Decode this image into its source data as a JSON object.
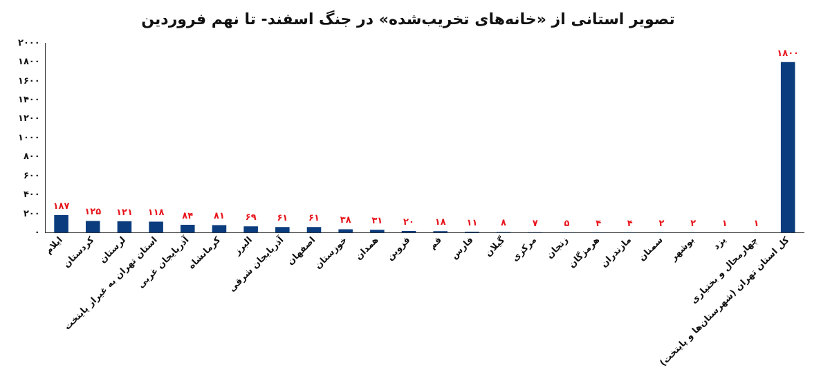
{
  "chart_data": {
    "type": "bar",
    "title": "تصویر استانی از «خانه‌های تخریب‌شده» در جنگ اسفند- تا نهم فروردین",
    "categories": [
      "ایلام",
      "کردستان",
      "لرستان",
      "استان تهران به غیراز پایتخت",
      "آذربایجان غربی",
      "کرمانشاه",
      "البرز",
      "آذربایجان شرقی",
      "اصفهان",
      "خوزستان",
      "همدان",
      "قزوین",
      "قم",
      "فارس",
      "گیلان",
      "مرکزی",
      "زنجان",
      "هرمزگان",
      "مازندران",
      "سمنان",
      "بوشهر",
      "یزد",
      "چهارمحال و بختیاری",
      "کل استان تهران (شهرستان‌ها و پایتخت)"
    ],
    "values": [
      187,
      125,
      121,
      118,
      84,
      81,
      69,
      61,
      61,
      38,
      31,
      20,
      18,
      11,
      8,
      7,
      5,
      4,
      4,
      2,
      2,
      1,
      1,
      1800
    ],
    "value_labels": [
      "۱۸۷",
      "۱۲۵",
      "۱۲۱",
      "۱۱۸",
      "۸۴",
      "۸۱",
      "۶۹",
      "۶۱",
      "۶۱",
      "۳۸",
      "۳۱",
      "۲۰",
      "۱۸",
      "۱۱",
      "۸",
      "۷",
      "۵",
      "۴",
      "۴",
      "۲",
      "۲",
      "۱",
      "۱",
      "۱۸۰۰"
    ],
    "color": "#0b3d7e",
    "ylim": [
      0,
      2000
    ],
    "yticks": [
      {
        "value": 0,
        "label": "۰"
      },
      {
        "value": 200,
        "label": "۲۰۰"
      },
      {
        "value": 400,
        "label": "۴۰۰"
      },
      {
        "value": 600,
        "label": "۶۰۰"
      },
      {
        "value": 800,
        "label": "۸۰۰"
      },
      {
        "value": 1000,
        "label": "۱۰۰۰"
      },
      {
        "value": 1200,
        "label": "۱۲۰۰"
      },
      {
        "value": 1400,
        "label": "۱۴۰۰"
      },
      {
        "value": 1600,
        "label": "۱۶۰۰"
      },
      {
        "value": 1800,
        "label": "۱۸۰۰"
      },
      {
        "value": 2000,
        "label": "۲۰۰۰"
      }
    ],
    "grid": false,
    "legend": false
  }
}
